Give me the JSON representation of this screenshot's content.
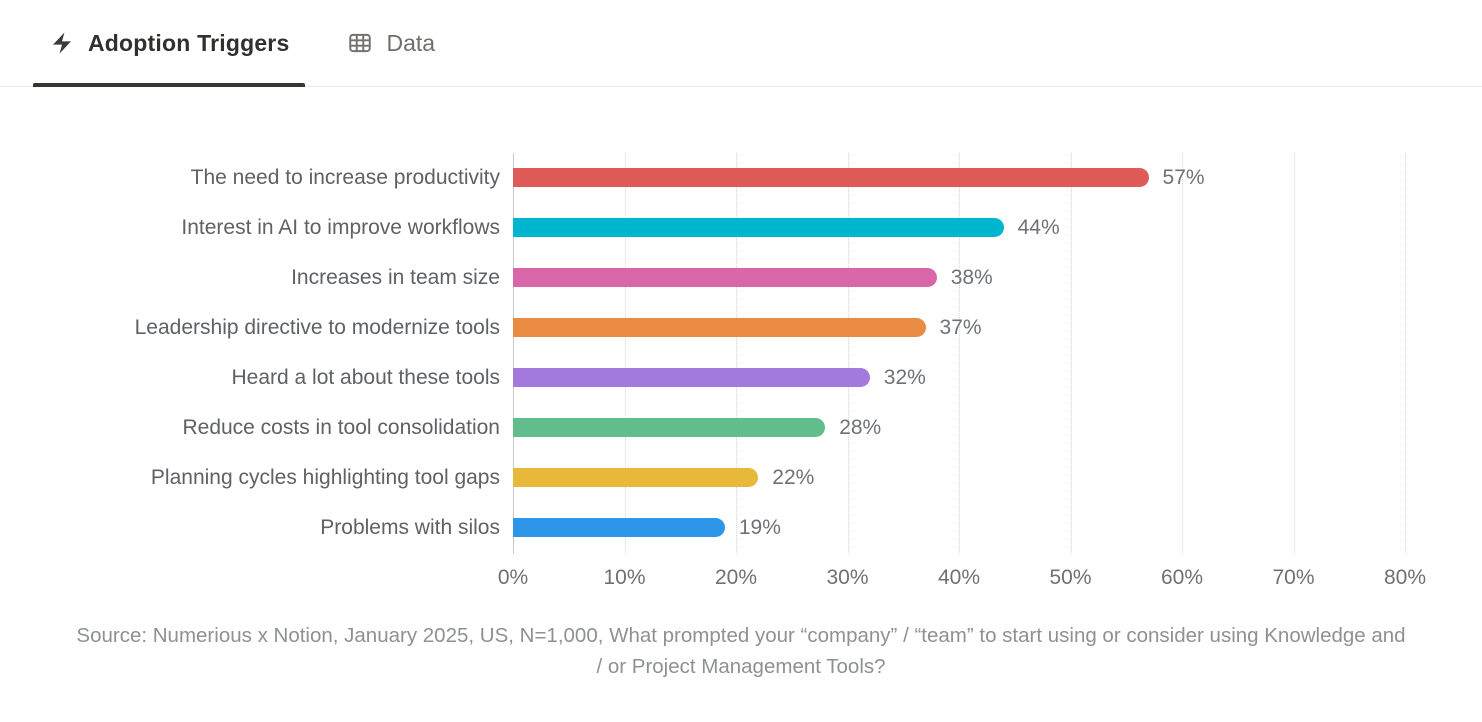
{
  "tabs": [
    {
      "label": "Adoption Triggers",
      "icon": "lightning-bolt-icon",
      "active": true
    },
    {
      "label": "Data",
      "icon": "table-icon",
      "active": false
    }
  ],
  "chart_data": {
    "type": "bar",
    "orientation": "horizontal",
    "title": "Adoption Triggers",
    "categories": [
      "The need to increase productivity",
      "Interest in AI to improve workflows",
      "Increases in team size",
      "Leadership directive to modernize tools",
      "Heard a lot about these tools",
      "Reduce costs in tool consolidation",
      "Planning cycles highlighting tool gaps",
      "Problems with silos"
    ],
    "values": [
      57,
      44,
      38,
      37,
      32,
      28,
      22,
      19
    ],
    "value_labels": [
      "57%",
      "44%",
      "38%",
      "37%",
      "32%",
      "28%",
      "22%",
      "19%"
    ],
    "bar_colors": [
      "#df5b58",
      "#00b5ce",
      "#d866a8",
      "#e98b43",
      "#a379dd",
      "#61bd8c",
      "#e7b83a",
      "#2d96e8"
    ],
    "xlim": [
      0,
      80
    ],
    "x_ticks": [
      "0%",
      "10%",
      "20%",
      "30%",
      "40%",
      "50%",
      "60%",
      "70%",
      "80%"
    ],
    "grid": "vertical-dotted",
    "legend": "none"
  },
  "source": {
    "text": "Source: Numerious x Notion, January 2025, US, N=1,000, What prompted your “company” / “team” to start using or consider using Knowledge and / or Project Management Tools?"
  },
  "colors": {
    "active_tab_text": "#32302c",
    "inactive_tab_text": "#6f6e6a",
    "tab_underline": "#37352f",
    "tabbar_border": "#e9e9e7",
    "gridline": "#d7d7d7",
    "category_text": "#5e6165",
    "value_text": "#6e7277",
    "source_text": "#8e9194"
  }
}
